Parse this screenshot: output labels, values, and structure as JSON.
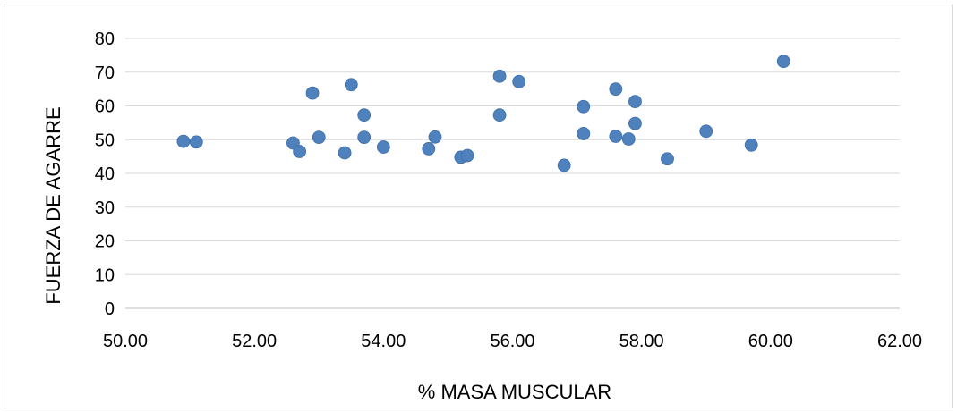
{
  "chart_data": {
    "type": "scatter",
    "title": "",
    "xlabel": "% MASA MUSCULAR",
    "ylabel": "FUERZA DE AGARRE",
    "xlim": [
      50,
      62
    ],
    "ylim": [
      0,
      80
    ],
    "x_ticks": [
      "50.00",
      "52.00",
      "54.00",
      "56.00",
      "58.00",
      "60.00",
      "62.00"
    ],
    "y_ticks": [
      "0",
      "10",
      "20",
      "30",
      "40",
      "50",
      "60",
      "70",
      "80"
    ],
    "grid": "horizontal",
    "legend": "none",
    "marker_color": "#4f81bd",
    "series": [
      {
        "points": [
          [
            50.9,
            49.5
          ],
          [
            51.1,
            49.3
          ],
          [
            52.6,
            49.0
          ],
          [
            52.7,
            46.5
          ],
          [
            52.9,
            63.8
          ],
          [
            53.0,
            50.7
          ],
          [
            53.4,
            46.1
          ],
          [
            53.5,
            66.3
          ],
          [
            53.7,
            57.3
          ],
          [
            53.7,
            50.7
          ],
          [
            54.0,
            47.8
          ],
          [
            54.7,
            47.3
          ],
          [
            54.8,
            50.8
          ],
          [
            55.2,
            44.8
          ],
          [
            55.3,
            45.3
          ],
          [
            55.8,
            68.8
          ],
          [
            55.8,
            57.3
          ],
          [
            56.1,
            67.2
          ],
          [
            56.8,
            42.4
          ],
          [
            57.1,
            59.8
          ],
          [
            57.1,
            51.8
          ],
          [
            57.6,
            65.0
          ],
          [
            57.6,
            51.0
          ],
          [
            57.8,
            50.2
          ],
          [
            57.9,
            61.3
          ],
          [
            57.9,
            54.8
          ],
          [
            58.4,
            44.3
          ],
          [
            59.0,
            52.5
          ],
          [
            59.7,
            48.4
          ],
          [
            60.2,
            73.2
          ]
        ]
      }
    ]
  }
}
